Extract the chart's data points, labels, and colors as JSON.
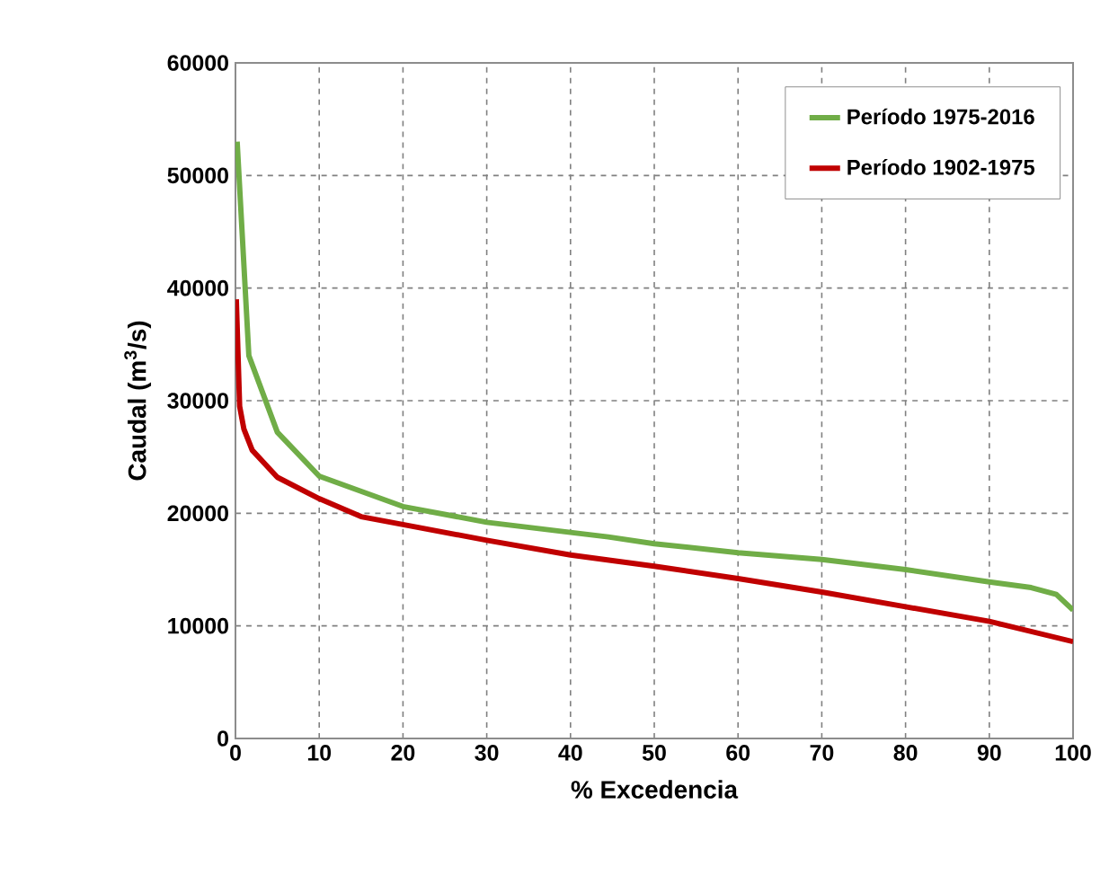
{
  "chart_data": {
    "type": "line",
    "xlabel": "% Excedencia",
    "ylabel": "Caudal (m$^{3}$/s)",
    "xlim": [
      0,
      100
    ],
    "ylim": [
      0,
      60000
    ],
    "xticks": [
      0,
      10,
      20,
      30,
      40,
      50,
      60,
      70,
      80,
      90,
      100
    ],
    "yticks": [
      0,
      10000,
      20000,
      30000,
      40000,
      50000,
      60000
    ],
    "grid": true,
    "legend": "top right",
    "marker": "none",
    "line_style": "solid",
    "series": [
      {
        "name": "Período 1975-2016",
        "color": "#70ad47",
        "x": [
          0.2,
          1.6,
          5,
          10,
          20,
          30,
          40,
          44.5,
          50,
          60,
          70,
          80,
          90,
          95,
          98,
          100
        ],
        "values": [
          53000,
          34000,
          27200,
          23300,
          20600,
          19200,
          18300,
          17900,
          17300,
          16500,
          15900,
          15000,
          13900,
          13400,
          12800,
          11400
        ]
      },
      {
        "name": "Período 1902-1975",
        "color": "#c00000",
        "x": [
          0.1,
          0.5,
          1,
          2,
          5,
          10,
          15,
          20,
          30,
          40,
          50,
          60,
          70,
          80,
          90,
          100
        ],
        "values": [
          39000,
          29500,
          27500,
          25600,
          23200,
          21300,
          19700,
          19000,
          17600,
          16300,
          15300,
          14200,
          13000,
          11700,
          10400,
          8600
        ]
      }
    ]
  }
}
